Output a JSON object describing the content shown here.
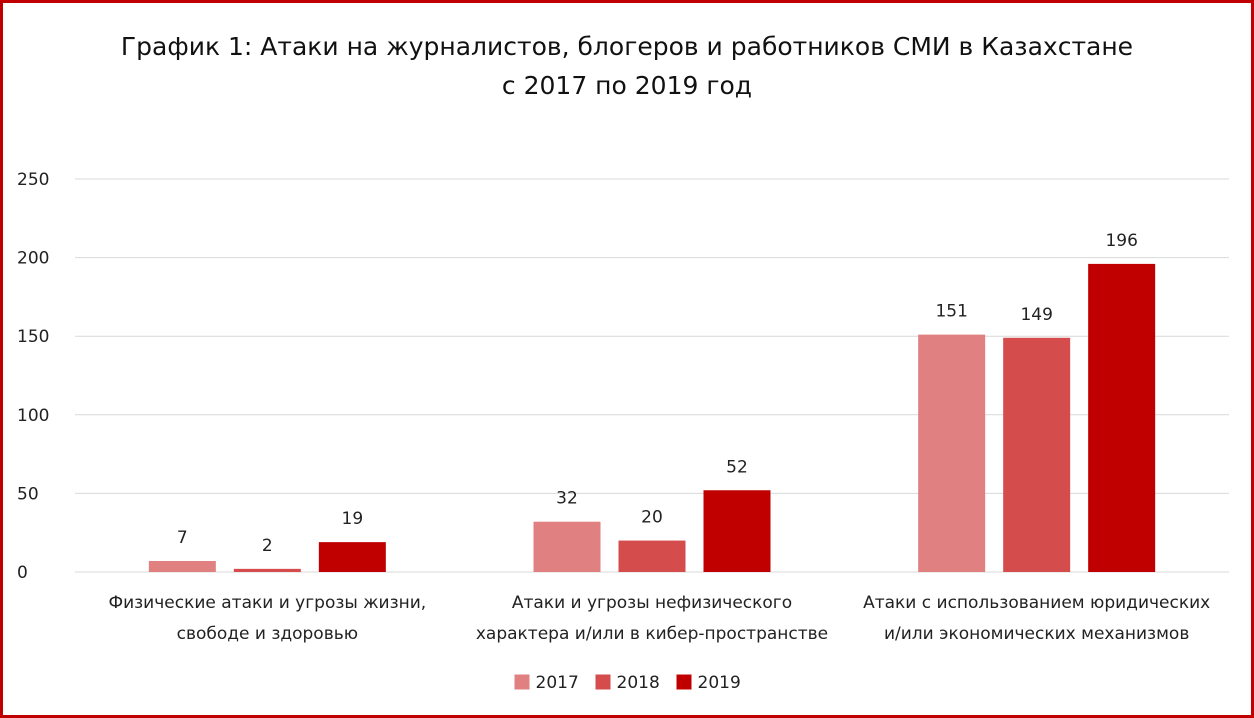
{
  "chart_data": {
    "type": "bar",
    "title": [
      "График 1: Атаки на журналистов, блогеров и работников СМИ в Казахстане",
      "с 2017 по 2019 год"
    ],
    "categories": [
      [
        "Физические атаки и угрозы жизни,",
        "свободе и здоровью"
      ],
      [
        "Атаки и угрозы нефизического",
        "характера и/или в кибер-пространстве"
      ],
      [
        "Атаки с использованием юридических",
        "и/или экономических механизмов"
      ]
    ],
    "series": [
      {
        "name": "2017",
        "values": [
          7,
          32,
          151
        ],
        "color": "#e08080"
      },
      {
        "name": "2018",
        "values": [
          2,
          20,
          149
        ],
        "color": "#d44c4c"
      },
      {
        "name": "2019",
        "values": [
          19,
          52,
          196
        ],
        "color": "#c00000"
      }
    ],
    "ylim": [
      0,
      250
    ],
    "yticks": [
      0,
      50,
      100,
      150,
      200,
      250
    ],
    "grid": true,
    "legend": "bottom",
    "frame_color": "#c00000"
  }
}
